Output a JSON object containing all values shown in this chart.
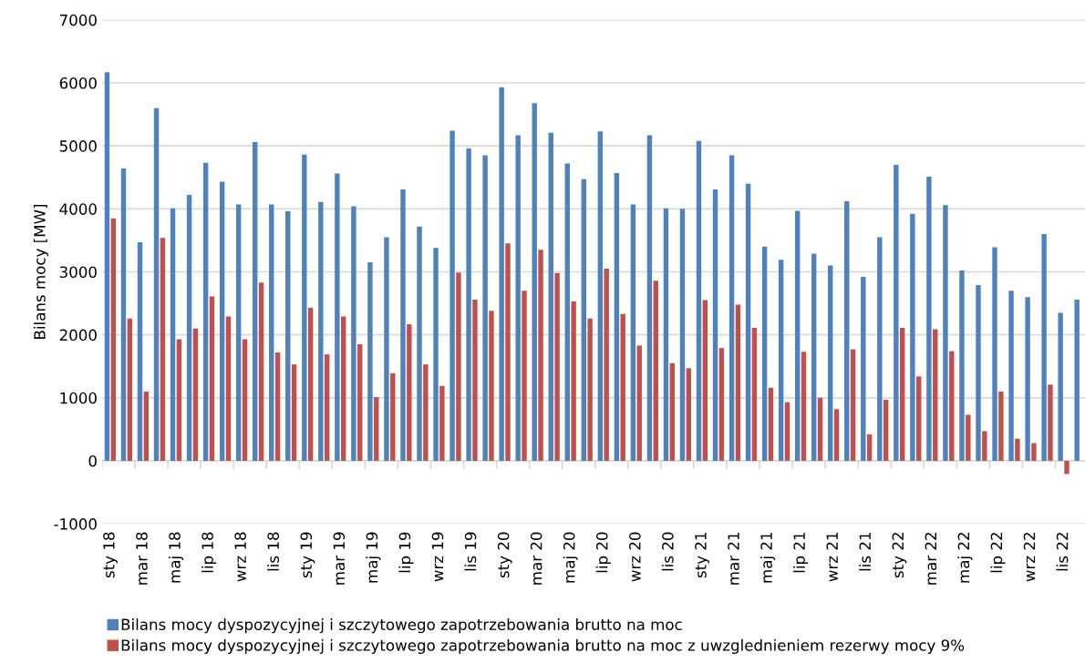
{
  "chart_data": {
    "type": "bar",
    "ylabel": "Bilans mocy [MW]",
    "categories": [
      "sty 18",
      null,
      "mar 18",
      null,
      "maj 18",
      null,
      "lip 18",
      null,
      "wrz 18",
      null,
      "lis 18",
      null,
      "sty 19",
      null,
      "mar 19",
      null,
      "maj 19",
      null,
      "lip 19",
      null,
      "wrz 19",
      null,
      "lis 19",
      null,
      "sty 20",
      null,
      "mar 20",
      null,
      "maj 20",
      null,
      "lip 20",
      null,
      "wrz 20",
      null,
      "lis 20",
      null,
      "sty 21",
      null,
      "mar 21",
      null,
      "maj 21",
      null,
      "lip 21",
      null,
      "wrz 21",
      null,
      "lis 21",
      null,
      "sty 22",
      null,
      "mar 22",
      null,
      "maj 22",
      null,
      "lip 22",
      null,
      "wrz 22",
      null,
      "lis 22",
      null
    ],
    "series": [
      {
        "name": "Bilans mocy dyspozycyjnej i szczytowego zapotrzebowania brutto na moc",
        "color": "#4f81bd",
        "values": [
          6170,
          4640,
          3470,
          5600,
          4010,
          4220,
          4730,
          4430,
          4070,
          5060,
          4070,
          3960,
          4860,
          4110,
          4560,
          4040,
          3150,
          3550,
          4310,
          3720,
          3380,
          5240,
          4960,
          4850,
          5930,
          5170,
          5680,
          5210,
          4720,
          4470,
          5230,
          4570,
          4070,
          5170,
          4010,
          4000,
          5080,
          4310,
          4850,
          4400,
          3400,
          3190,
          3970,
          3290,
          3100,
          4120,
          2920,
          3550,
          4700,
          3920,
          4510,
          4060,
          3020,
          2790,
          3390,
          2700,
          2600,
          3600,
          2350,
          2560
        ]
      },
      {
        "name": "Bilans mocy dyspozycyjnej i szczytowego zapotrzebowania brutto na moc z uwzglednieniem rezerwy mocy 9%",
        "color": "#c0504d",
        "values": [
          3850,
          2260,
          1100,
          3540,
          1930,
          2100,
          2610,
          2290,
          1930,
          2830,
          1720,
          1530,
          2430,
          1690,
          2290,
          1850,
          1010,
          1390,
          2170,
          1530,
          1190,
          2990,
          2560,
          2380,
          3450,
          2700,
          3350,
          2980,
          2530,
          2260,
          3050,
          2330,
          1830,
          2860,
          1550,
          1470,
          2550,
          1790,
          2480,
          2110,
          1160,
          930,
          1730,
          1000,
          820,
          1770,
          420,
          970,
          2110,
          1340,
          2090,
          1740,
          730,
          470,
          1100,
          350,
          280,
          1210,
          -210,
          null
        ]
      }
    ],
    "ylim": [
      -1000,
      7000
    ],
    "yticks": [
      -1000,
      0,
      1000,
      2000,
      3000,
      4000,
      5000,
      6000,
      7000
    ],
    "grid": "y",
    "legend": "bottom left"
  }
}
